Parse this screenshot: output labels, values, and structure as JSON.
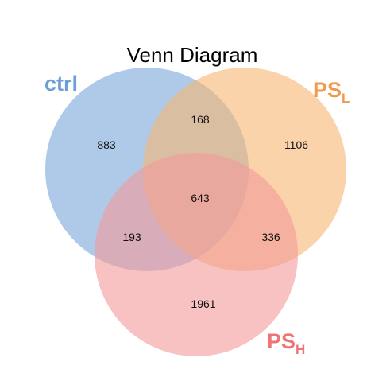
{
  "title": "Venn Diagram",
  "sets": {
    "ctrl": {
      "label": "ctrl",
      "subscript": "",
      "color": "#6d9fd6",
      "fill": "#7aa7d9"
    },
    "ps_l": {
      "label": "PS",
      "subscript": "L",
      "color": "#f09a4c",
      "fill": "#f7b573"
    },
    "ps_h": {
      "label": "PS",
      "subscript": "H",
      "color": "#ee7575",
      "fill": "#f39a9a"
    }
  },
  "regions": {
    "ctrl_only": "883",
    "ps_l_only": "1106",
    "ps_h_only": "1961",
    "ctrl_ps_l": "168",
    "ctrl_ps_h": "193",
    "ps_l_ps_h": "336",
    "all_three": "643"
  }
}
